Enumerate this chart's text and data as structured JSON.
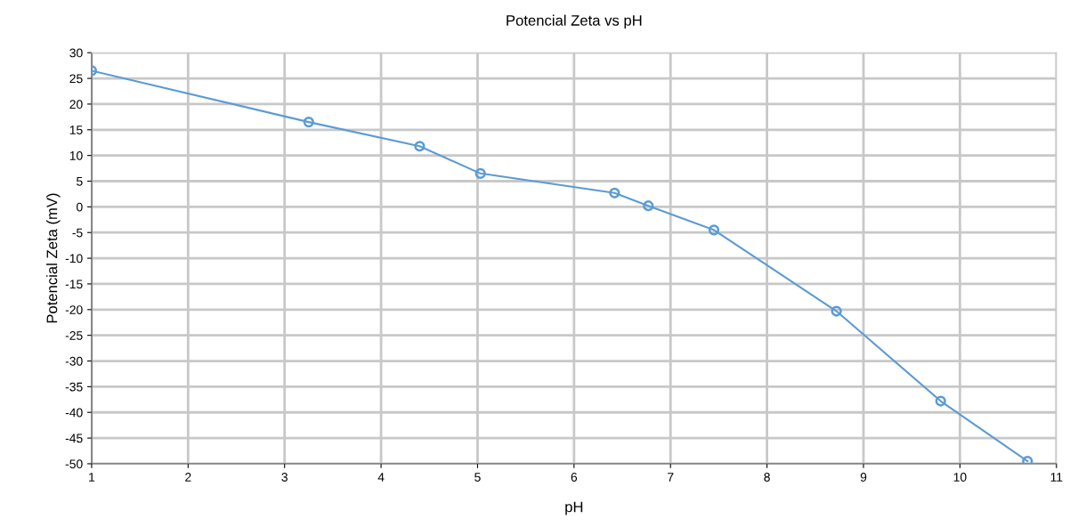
{
  "chart_data": {
    "type": "line",
    "title": "Potencial Zeta vs pH",
    "xlabel": "pH",
    "ylabel": "Potencial Zeta (mV)",
    "x": [
      1,
      3.25,
      4.4,
      5.03,
      6.42,
      6.77,
      7.45,
      8.72,
      9.8,
      10.7
    ],
    "series": [
      {
        "color": "#5b9bd5",
        "values": [
          26.5,
          16.5,
          11.8,
          6.5,
          2.7,
          0.2,
          -4.5,
          -20.3,
          -37.8,
          -49.5
        ]
      }
    ],
    "xlim": [
      1,
      11
    ],
    "xticks": [
      1,
      2,
      3,
      4,
      5,
      6,
      7,
      8,
      9,
      10,
      11
    ],
    "ylim": [
      -50,
      30
    ],
    "yticks": [
      -50,
      -45,
      -40,
      -35,
      -30,
      -25,
      -20,
      -15,
      -10,
      -5,
      0,
      5,
      10,
      15,
      20,
      25,
      30
    ],
    "grid": true,
    "marker": "circle",
    "line_style": "solid"
  }
}
